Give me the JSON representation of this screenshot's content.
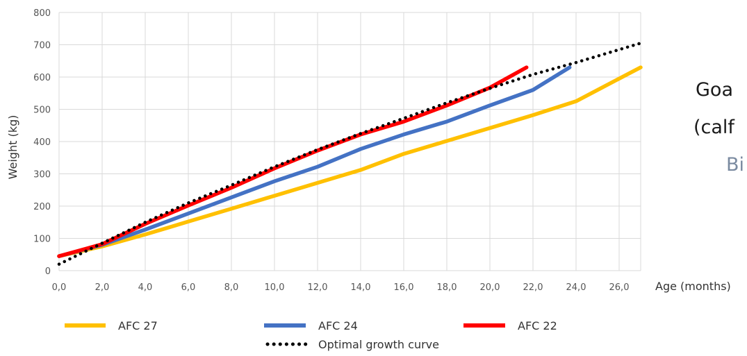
{
  "side_text": {
    "line1": "Goa",
    "line2": "(calf",
    "line3": "Bi"
  },
  "chart_data": {
    "type": "line",
    "ylabel": "Weight (kg)",
    "xlabel": "Age (months)",
    "xlim": [
      0,
      27
    ],
    "ylim": [
      0,
      800
    ],
    "x_ticks": [
      "0,0",
      "2,0",
      "4,0",
      "6,0",
      "8,0",
      "10,0",
      "12,0",
      "14,0",
      "16,0",
      "18,0",
      "20,0",
      "22,0",
      "24,0",
      "26,0"
    ],
    "y_ticks": [
      "0",
      "100",
      "200",
      "300",
      "400",
      "500",
      "600",
      "700",
      "800"
    ],
    "grid": true,
    "legend_position": "bottom",
    "series": [
      {
        "name": "AFC 27",
        "color": "#ffc000",
        "style": "solid",
        "x": [
          0,
          2,
          4,
          6,
          8,
          10,
          12,
          14,
          16,
          18,
          20,
          22,
          24,
          26,
          27
        ],
        "y": [
          45,
          75,
          112,
          152,
          192,
          232,
          272,
          312,
          362,
          402,
          442,
          482,
          525,
          595,
          630
        ]
      },
      {
        "name": "AFC 24",
        "color": "#4472c4",
        "style": "solid",
        "x": [
          0,
          2,
          4,
          6,
          8,
          10,
          12,
          14,
          16,
          18,
          20,
          22,
          23.7
        ],
        "y": [
          45,
          80,
          127,
          177,
          227,
          277,
          322,
          377,
          422,
          462,
          512,
          560,
          630
        ]
      },
      {
        "name": "AFC 22",
        "color": "#ff0000",
        "style": "solid",
        "x": [
          0,
          2,
          4,
          6,
          8,
          10,
          12,
          14,
          16,
          18,
          20,
          21.7
        ],
        "y": [
          45,
          82,
          145,
          202,
          257,
          317,
          372,
          422,
          462,
          512,
          567,
          630
        ]
      },
      {
        "name": "Optimal growth curve",
        "color": "#000000",
        "style": "dotted",
        "x": [
          0,
          2,
          4,
          6,
          8,
          10,
          12,
          14,
          16,
          18,
          20,
          22,
          24,
          26,
          27
        ],
        "y": [
          20,
          85,
          150,
          210,
          265,
          322,
          375,
          425,
          472,
          520,
          565,
          608,
          645,
          685,
          705
        ]
      }
    ]
  }
}
